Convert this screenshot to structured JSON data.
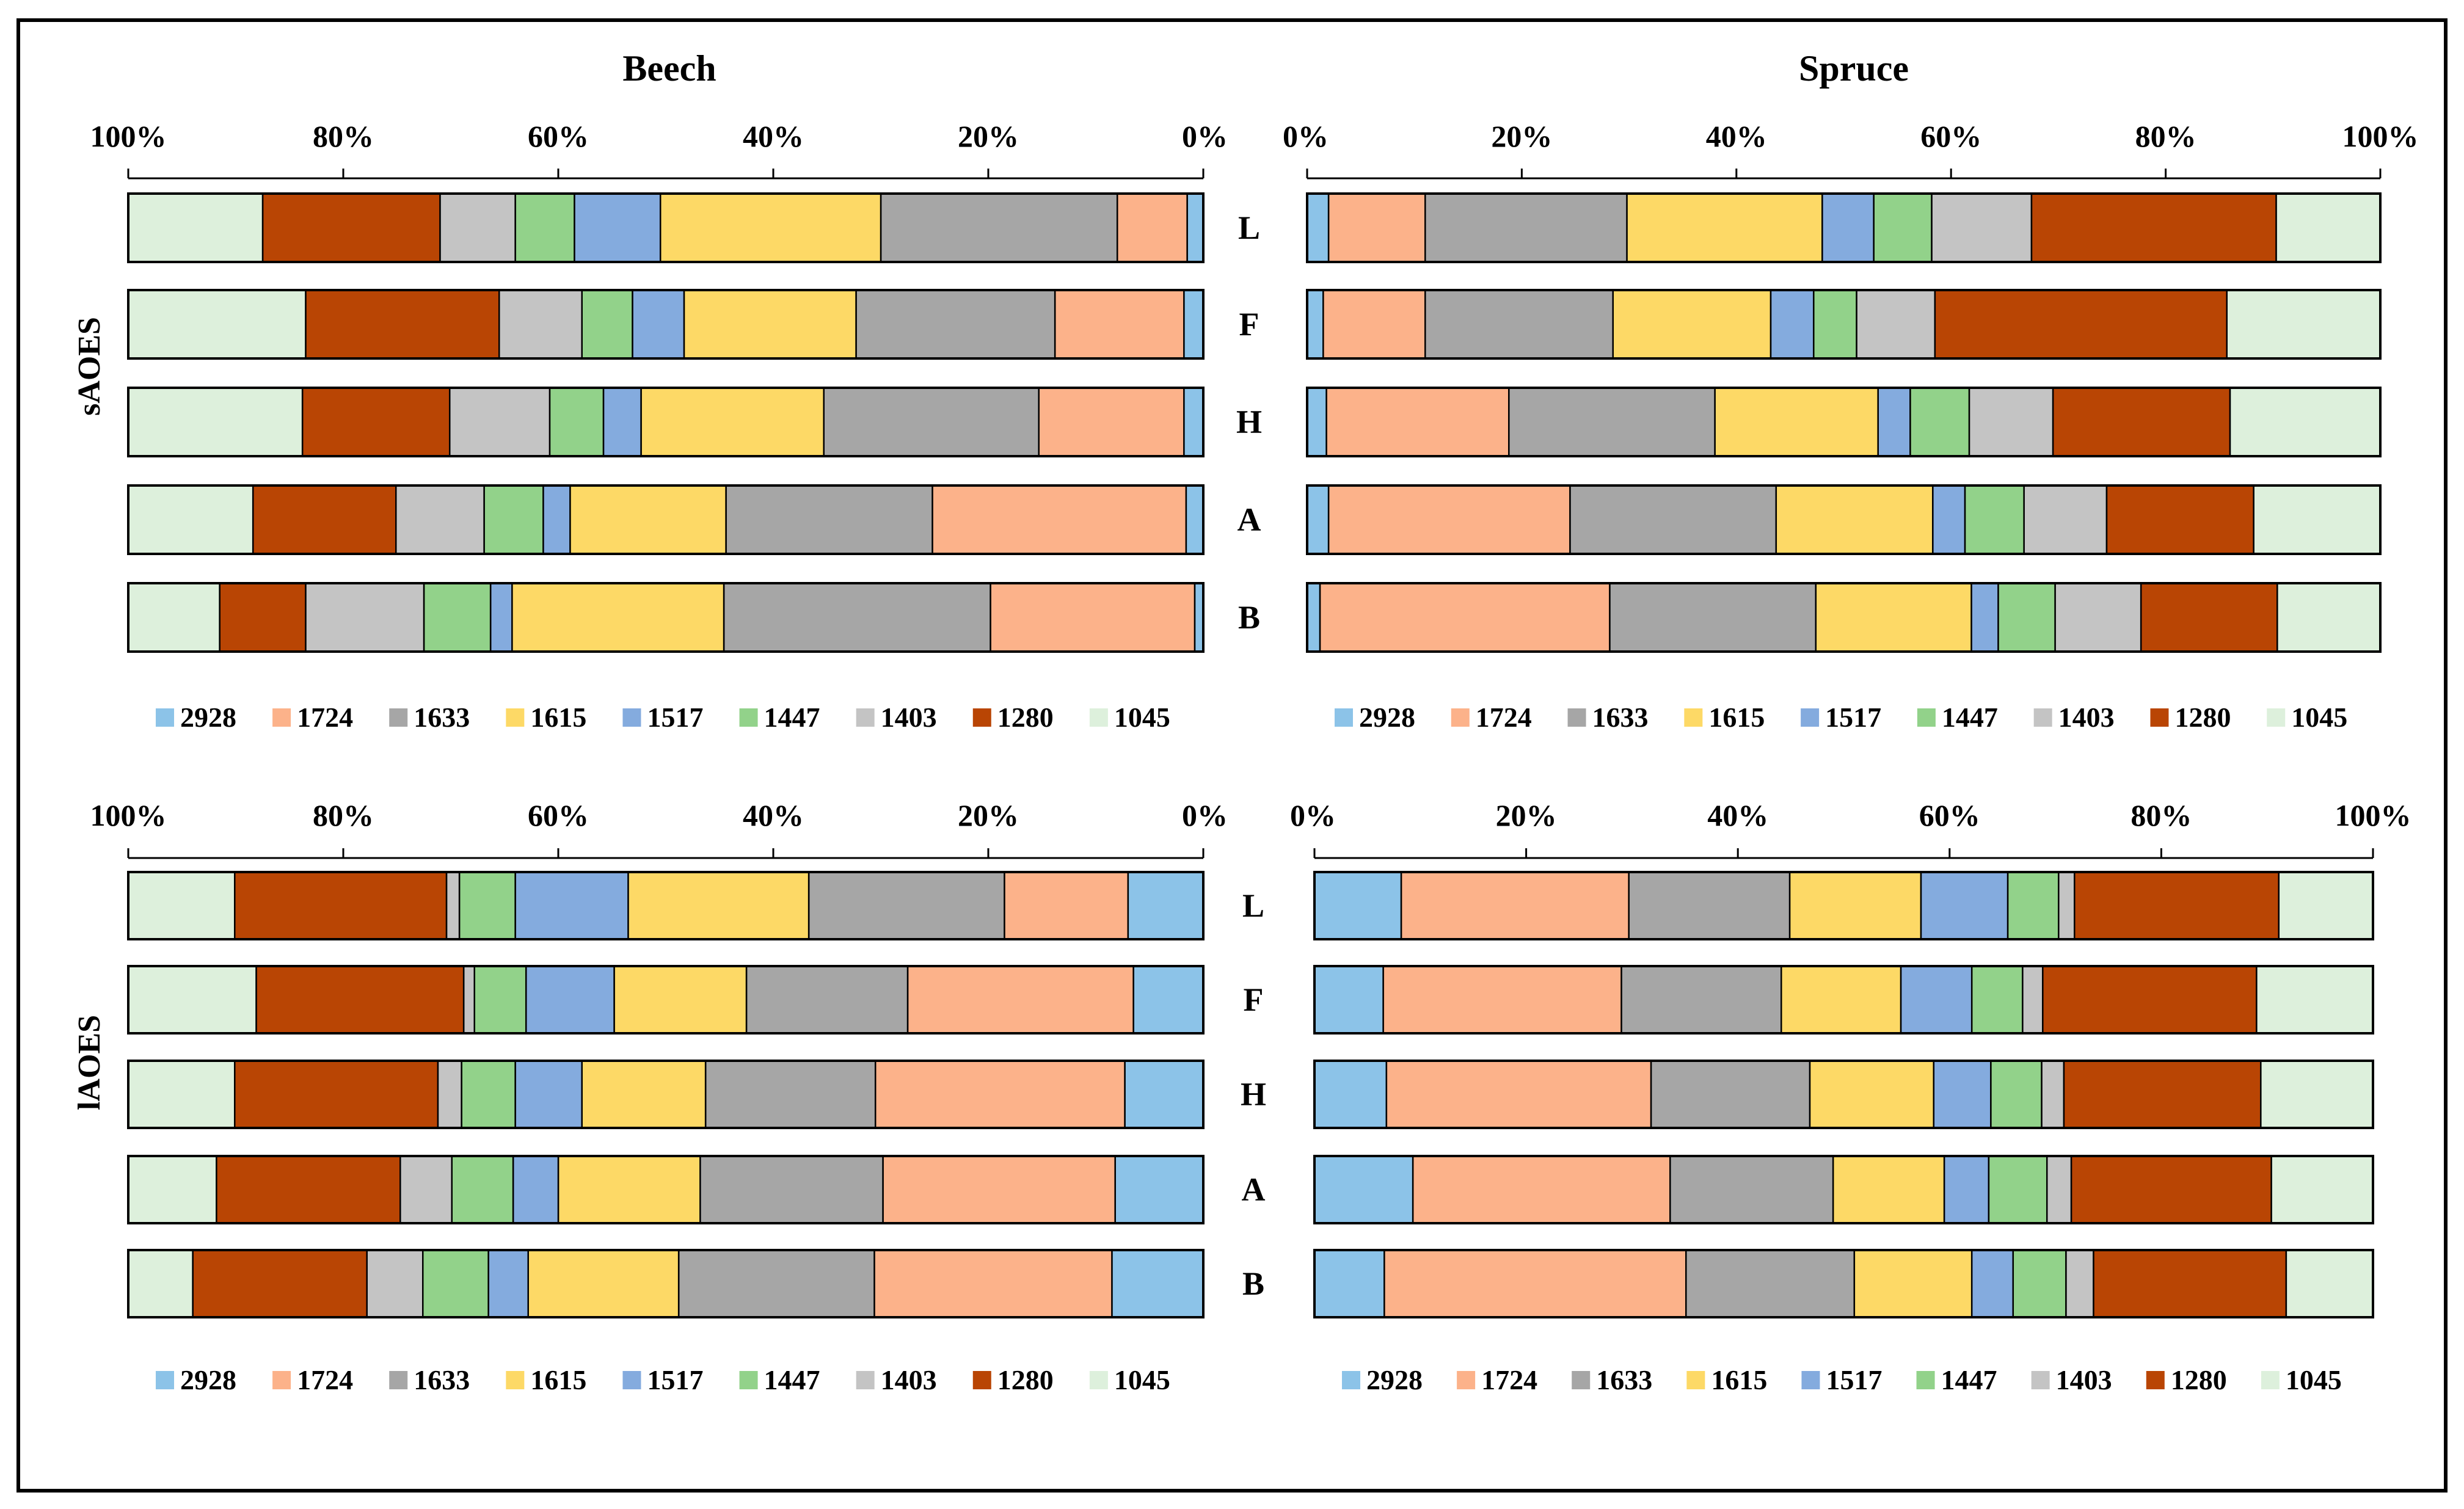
{
  "figure": {
    "row_labels": [
      "sAOES",
      "lAOES"
    ],
    "col_titles": [
      "Beech",
      "Spruce"
    ],
    "tick_labels": [
      "0%",
      "20%",
      "40%",
      "60%",
      "80%",
      "100%"
    ],
    "colors": {
      "2928": "#8cc3e8",
      "1724": "#fcb28a",
      "1633": "#a6a6a6",
      "1615": "#fdd966",
      "1517": "#84abde",
      "1447": "#92d28a",
      "1403": "#c4c4c4",
      "1280": "#b94504",
      "1045": "#ddf0dc"
    }
  },
  "chart_data": [
    {
      "type": "bar",
      "stacked": "percent",
      "title": "Beech",
      "row_label": "sAOES",
      "axis_direction": "reversed",
      "xlim": [
        0,
        100
      ],
      "categories": [
        "L",
        "F",
        "H",
        "A",
        "B"
      ],
      "legend": [
        "2928",
        "1724",
        "1633",
        "1615",
        "1517",
        "1447",
        "1403",
        "1280",
        "1045"
      ],
      "series": [
        {
          "name": "2928",
          "values": [
            1.5,
            1.8,
            1.8,
            1.6,
            0.8
          ]
        },
        {
          "name": "1724",
          "values": [
            6.5,
            12.0,
            13.5,
            23.6,
            19.0
          ]
        },
        {
          "name": "1633",
          "values": [
            22.0,
            18.5,
            20.0,
            19.2,
            24.8
          ]
        },
        {
          "name": "1615",
          "values": [
            20.5,
            16.0,
            17.0,
            14.5,
            19.7
          ]
        },
        {
          "name": "1517",
          "values": [
            8.0,
            4.8,
            3.5,
            2.5,
            2.0
          ]
        },
        {
          "name": "1447",
          "values": [
            5.5,
            4.7,
            5.0,
            5.5,
            6.2
          ]
        },
        {
          "name": "1403",
          "values": [
            7.0,
            7.7,
            9.3,
            8.2,
            11.0
          ]
        },
        {
          "name": "1280",
          "values": [
            16.5,
            18.0,
            13.7,
            13.3,
            8.0
          ]
        },
        {
          "name": "1045",
          "values": [
            12.5,
            16.5,
            16.2,
            11.6,
            8.5
          ]
        }
      ]
    },
    {
      "type": "bar",
      "stacked": "percent",
      "title": "Spruce",
      "row_label": "sAOES",
      "axis_direction": "normal",
      "xlim": [
        0,
        100
      ],
      "categories": [
        "L",
        "F",
        "H",
        "A",
        "B"
      ],
      "legend": [
        "2928",
        "1724",
        "1633",
        "1615",
        "1517",
        "1447",
        "1403",
        "1280",
        "1045"
      ],
      "series": [
        {
          "name": "2928",
          "values": [
            2.0,
            1.5,
            1.8,
            2.0,
            1.2
          ]
        },
        {
          "name": "1724",
          "values": [
            9.0,
            9.5,
            17.0,
            22.5,
            27.0
          ]
        },
        {
          "name": "1633",
          "values": [
            18.8,
            17.5,
            19.2,
            19.2,
            19.2
          ]
        },
        {
          "name": "1615",
          "values": [
            18.2,
            14.7,
            15.2,
            14.6,
            14.5
          ]
        },
        {
          "name": "1517",
          "values": [
            4.8,
            4.0,
            3.0,
            3.0,
            2.5
          ]
        },
        {
          "name": "1447",
          "values": [
            5.4,
            4.0,
            5.5,
            5.5,
            5.3
          ]
        },
        {
          "name": "1403",
          "values": [
            9.3,
            7.3,
            7.8,
            7.7,
            8.0
          ]
        },
        {
          "name": "1280",
          "values": [
            22.8,
            27.2,
            16.5,
            13.7,
            12.7
          ]
        },
        {
          "name": "1045",
          "values": [
            9.7,
            14.3,
            14.0,
            11.8,
            9.6
          ]
        }
      ]
    },
    {
      "type": "bar",
      "stacked": "percent",
      "title": "Beech",
      "row_label": "lAOES",
      "axis_direction": "reversed",
      "xlim": [
        0,
        100
      ],
      "categories": [
        "L",
        "F",
        "H",
        "A",
        "B"
      ],
      "legend": [
        "2928",
        "1724",
        "1633",
        "1615",
        "1517",
        "1447",
        "1403",
        "1280",
        "1045"
      ],
      "series": [
        {
          "name": "2928",
          "values": [
            7.0,
            6.5,
            7.3,
            8.2,
            8.5
          ]
        },
        {
          "name": "1724",
          "values": [
            11.5,
            21.0,
            23.2,
            21.6,
            22.1
          ]
        },
        {
          "name": "1633",
          "values": [
            18.2,
            15.0,
            15.8,
            17.0,
            18.2
          ]
        },
        {
          "name": "1615",
          "values": [
            16.8,
            12.3,
            11.5,
            13.2,
            14.0
          ]
        },
        {
          "name": "1517",
          "values": [
            10.5,
            8.2,
            6.2,
            4.2,
            3.7
          ]
        },
        {
          "name": "1447",
          "values": [
            5.2,
            4.8,
            5.0,
            5.7,
            6.1
          ]
        },
        {
          "name": "1403",
          "values": [
            1.2,
            1.0,
            2.2,
            4.8,
            5.2
          ]
        },
        {
          "name": "1280",
          "values": [
            19.7,
            19.3,
            18.9,
            17.1,
            16.2
          ]
        },
        {
          "name": "1045",
          "values": [
            9.9,
            11.9,
            9.9,
            8.2,
            6.0
          ]
        }
      ]
    },
    {
      "type": "bar",
      "stacked": "percent",
      "title": "Spruce",
      "row_label": "lAOES",
      "axis_direction": "normal",
      "xlim": [
        0,
        100
      ],
      "categories": [
        "L",
        "F",
        "H",
        "A",
        "B"
      ],
      "legend": [
        "2928",
        "1724",
        "1633",
        "1615",
        "1517",
        "1447",
        "1403",
        "1280",
        "1045"
      ],
      "series": [
        {
          "name": "2928",
          "values": [
            8.2,
            6.5,
            6.8,
            9.3,
            6.6
          ]
        },
        {
          "name": "1724",
          "values": [
            21.5,
            22.5,
            25.0,
            24.3,
            28.5
          ]
        },
        {
          "name": "1633",
          "values": [
            15.2,
            15.1,
            15.0,
            15.4,
            15.9
          ]
        },
        {
          "name": "1615",
          "values": [
            12.4,
            11.3,
            11.7,
            10.5,
            11.1
          ]
        },
        {
          "name": "1517",
          "values": [
            8.2,
            6.7,
            5.4,
            4.2,
            3.9
          ]
        },
        {
          "name": "1447",
          "values": [
            4.8,
            4.8,
            4.8,
            5.5,
            5.0
          ]
        },
        {
          "name": "1403",
          "values": [
            1.5,
            1.9,
            2.1,
            2.3,
            2.6
          ]
        },
        {
          "name": "1280",
          "values": [
            19.3,
            20.2,
            18.6,
            18.9,
            18.2
          ]
        },
        {
          "name": "1045",
          "values": [
            8.9,
            11.0,
            10.6,
            9.6,
            8.2
          ]
        }
      ]
    }
  ]
}
